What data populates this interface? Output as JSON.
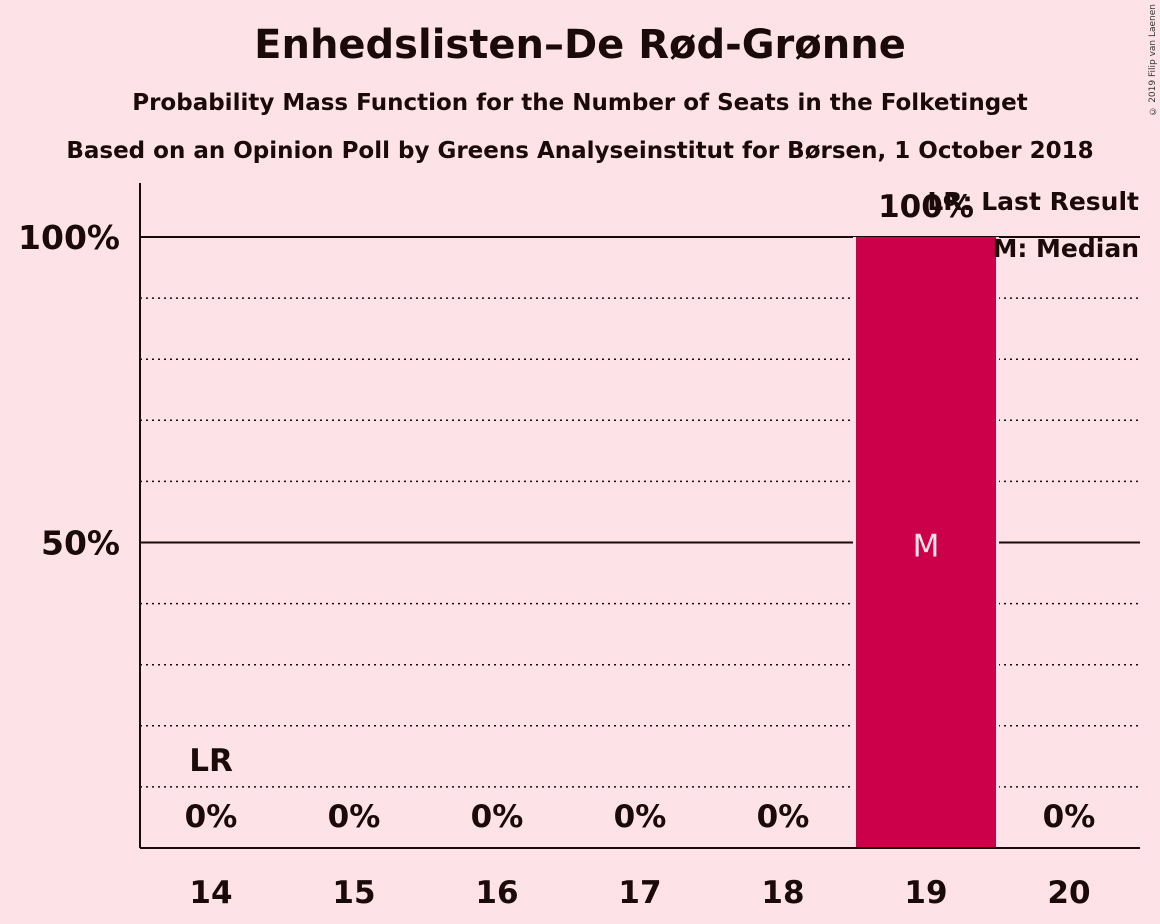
{
  "colors": {
    "background": "#fde2e7",
    "bar": "#cc004a",
    "text": "#1a0a0a"
  },
  "copyright": "© 2019 Filip van Laenen",
  "chart_data": {
    "type": "bar",
    "title": "Enhedslisten–De Rød-Grønne",
    "subtitle": "Probability Mass Function for the Number of Seats in the Folketinget",
    "subtitle2": "Based on an Opinion Poll by Greens Analyseinstitut for Børsen, 1 October 2018",
    "categories": [
      "14",
      "15",
      "16",
      "17",
      "18",
      "19",
      "20"
    ],
    "values": [
      0,
      0,
      0,
      0,
      0,
      100,
      0
    ],
    "value_labels": [
      "0%",
      "0%",
      "0%",
      "0%",
      "0%",
      "100%",
      "0%"
    ],
    "ylim": [
      0,
      100
    ],
    "yticks": [
      50,
      100
    ],
    "ytick_labels": [
      "50%",
      "100%"
    ],
    "grid": "dotted every 10%, solid at 50% and 100%",
    "last_result": {
      "category": "14",
      "label": "LR"
    },
    "median": {
      "category": "19",
      "label": "M"
    },
    "legend": {
      "placement": "top-right",
      "entries": [
        "LR: Last Result",
        "M: Median"
      ]
    }
  }
}
